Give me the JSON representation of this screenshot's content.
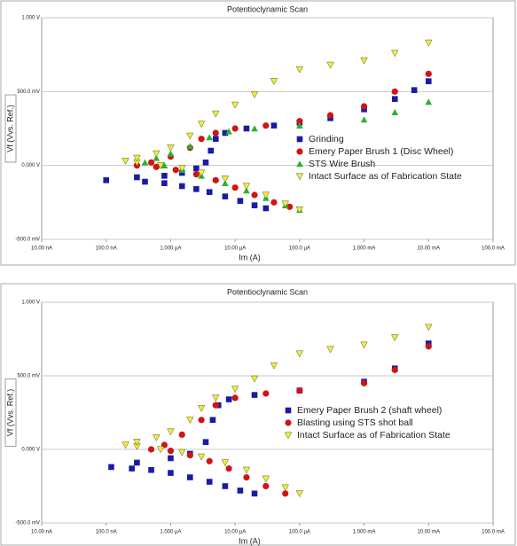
{
  "chart_data": [
    {
      "type": "scatter",
      "title": "Potentioclynamic  Scan",
      "xlabel": "Im  (A)",
      "ylabel": "Vf  (Vvs.  Ref.)",
      "xscale": "log",
      "xlim": [
        1e-08,
        0.1
      ],
      "xticks": [
        {
          "value": 1e-08,
          "label": "10.00 nA"
        },
        {
          "value": 1e-07,
          "label": "100.0 nA"
        },
        {
          "value": 1e-06,
          "label": "1.000 µA"
        },
        {
          "value": 1e-05,
          "label": "10.00 µA"
        },
        {
          "value": 0.0001,
          "label": "100.0 µA"
        },
        {
          "value": 0.001,
          "label": "1.000 mA"
        },
        {
          "value": 0.01,
          "label": "10.00 mA"
        },
        {
          "value": 0.1,
          "label": "100.0 mA"
        }
      ],
      "ylim": [
        -0.5,
        1.0
      ],
      "yticks": [
        {
          "value": -0.5,
          "label": "-500.0 mV"
        },
        {
          "value": 0,
          "label": "0.000 V"
        },
        {
          "value": 0.5,
          "label": "500.0 mV"
        },
        {
          "value": 1.0,
          "label": "1.000 V"
        }
      ],
      "grid": true,
      "legend": "right",
      "series": [
        {
          "name": "Grinding",
          "color": "#1a1aa8",
          "marker": "square",
          "x": [
            3e-05,
            2e-05,
            1.2e-05,
            7e-06,
            4e-06,
            2.5e-06,
            1.5e-06,
            8e-07,
            4e-07,
            1e-07,
            3e-07,
            8e-07,
            1.5e-06,
            2.5e-06,
            3.5e-06,
            4.2e-06,
            5e-06,
            7e-06,
            1.5e-05,
            4e-05,
            0.0001,
            0.0003,
            0.001,
            0.003,
            0.006,
            0.01
          ],
          "values": [
            -0.29,
            -0.27,
            -0.24,
            -0.21,
            -0.18,
            -0.16,
            -0.14,
            -0.12,
            -0.11,
            -0.1,
            -0.08,
            -0.07,
            -0.05,
            -0.02,
            0.02,
            0.1,
            0.18,
            0.22,
            0.25,
            0.27,
            0.29,
            0.32,
            0.38,
            0.45,
            0.51,
            0.57
          ]
        },
        {
          "name": "Emery Paper Brush 1 (Disc Wheel)",
          "color": "#d01414",
          "marker": "circle",
          "x": [
            7e-05,
            4e-05,
            2e-05,
            1e-05,
            5e-06,
            2.5e-06,
            1.2e-06,
            6e-07,
            3e-07,
            5e-07,
            1e-06,
            2e-06,
            3e-06,
            5e-06,
            1e-05,
            3e-05,
            0.0001,
            0.0003,
            0.001,
            0.003,
            0.01
          ],
          "values": [
            -0.28,
            -0.25,
            -0.2,
            -0.15,
            -0.1,
            -0.06,
            -0.03,
            -0.01,
            0.0,
            0.02,
            0.06,
            0.12,
            0.18,
            0.22,
            0.25,
            0.27,
            0.3,
            0.34,
            0.4,
            0.5,
            0.62
          ]
        },
        {
          "name": "STS Wire Brush",
          "color": "#2eb02e",
          "marker": "triangle-up",
          "x": [
            0.0001,
            6e-05,
            3e-05,
            1.5e-05,
            7e-06,
            3e-06,
            1.5e-06,
            8e-07,
            4e-07,
            6e-07,
            1e-06,
            2e-06,
            4e-06,
            8e-06,
            2e-05,
            0.0001,
            0.001,
            0.003,
            0.01
          ],
          "values": [
            -0.3,
            -0.27,
            -0.22,
            -0.17,
            -0.12,
            -0.07,
            -0.03,
            0.0,
            0.02,
            0.05,
            0.08,
            0.13,
            0.19,
            0.23,
            0.25,
            0.27,
            0.31,
            0.36,
            0.43
          ]
        },
        {
          "name": "Intact Surface as of Fabrication State",
          "color": "#f0f028",
          "marker": "triangle-down",
          "x": [
            0.0001,
            6e-05,
            3e-05,
            1.5e-05,
            7e-06,
            3e-06,
            1.5e-06,
            7e-07,
            3e-07,
            2e-07,
            3e-07,
            6e-07,
            1e-06,
            2e-06,
            3e-06,
            5e-06,
            1e-05,
            2e-05,
            4e-05,
            0.0001,
            0.0003,
            0.001,
            0.003,
            0.01
          ],
          "values": [
            -0.3,
            -0.26,
            -0.2,
            -0.14,
            -0.09,
            -0.05,
            -0.02,
            0.0,
            0.02,
            0.03,
            0.05,
            0.08,
            0.12,
            0.2,
            0.28,
            0.35,
            0.41,
            0.48,
            0.57,
            0.65,
            0.68,
            0.71,
            0.76,
            0.83
          ]
        }
      ]
    },
    {
      "type": "scatter",
      "title": "Potentioclynamic  Scan",
      "xlabel": "Im  (A)",
      "ylabel": "Vf  (Vvs.  Ref.)",
      "xscale": "log",
      "xlim": [
        1e-08,
        0.1
      ],
      "xticks": [
        {
          "value": 1e-08,
          "label": "10.00 nA"
        },
        {
          "value": 1e-07,
          "label": "100.0 nA"
        },
        {
          "value": 1e-06,
          "label": "1.000 µA"
        },
        {
          "value": 1e-05,
          "label": "10.00 µA"
        },
        {
          "value": 0.0001,
          "label": "100.0 µA"
        },
        {
          "value": 0.001,
          "label": "1.000 mA"
        },
        {
          "value": 0.01,
          "label": "10.00 mA"
        },
        {
          "value": 0.1,
          "label": "100.0 mA"
        }
      ],
      "ylim": [
        -0.5,
        1.0
      ],
      "yticks": [
        {
          "value": -0.5,
          "label": "-500.0 mV"
        },
        {
          "value": 0,
          "label": "0.000 V"
        },
        {
          "value": 0.5,
          "label": "500.0 mV"
        },
        {
          "value": 1.0,
          "label": "1.000 V"
        }
      ],
      "grid": true,
      "legend": "right",
      "series": [
        {
          "name": "Emery Paper Brush 2 (shaft wheel)",
          "color": "#1a1aa8",
          "marker": "square",
          "x": [
            2e-05,
            1.2e-05,
            7e-06,
            4e-06,
            2e-06,
            1e-06,
            5e-07,
            2.5e-07,
            1.2e-07,
            3e-07,
            1e-06,
            2e-06,
            3.5e-06,
            4.5e-06,
            5.5e-06,
            8e-06,
            2e-05,
            0.0001,
            0.001,
            0.003,
            0.01
          ],
          "values": [
            -0.3,
            -0.28,
            -0.25,
            -0.22,
            -0.19,
            -0.16,
            -0.14,
            -0.13,
            -0.12,
            -0.09,
            -0.06,
            -0.03,
            0.05,
            0.2,
            0.3,
            0.34,
            0.37,
            0.4,
            0.46,
            0.55,
            0.72
          ]
        },
        {
          "name": "Blasting using STS shot ball",
          "color": "#d01414",
          "marker": "circle",
          "x": [
            6e-05,
            3e-05,
            1.5e-05,
            8e-06,
            4e-06,
            2e-06,
            1e-06,
            5e-07,
            8e-07,
            1.5e-06,
            3e-06,
            5e-06,
            1e-05,
            3e-05,
            0.0001,
            0.001,
            0.003,
            0.01
          ],
          "values": [
            -0.3,
            -0.25,
            -0.19,
            -0.13,
            -0.08,
            -0.04,
            -0.01,
            0.0,
            0.03,
            0.1,
            0.2,
            0.3,
            0.35,
            0.38,
            0.4,
            0.45,
            0.54,
            0.7
          ]
        },
        {
          "name": "Intact Surface as of Fabrication State",
          "color": "#f0f028",
          "marker": "triangle-down",
          "x": [
            0.0001,
            6e-05,
            3e-05,
            1.5e-05,
            7e-06,
            3e-06,
            1.5e-06,
            7e-07,
            3e-07,
            2e-07,
            3e-07,
            6e-07,
            1e-06,
            2e-06,
            3e-06,
            5e-06,
            1e-05,
            2e-05,
            4e-05,
            0.0001,
            0.0003,
            0.001,
            0.003,
            0.01
          ],
          "values": [
            -0.3,
            -0.26,
            -0.2,
            -0.14,
            -0.09,
            -0.05,
            -0.02,
            0.0,
            0.02,
            0.03,
            0.05,
            0.08,
            0.12,
            0.2,
            0.28,
            0.35,
            0.41,
            0.48,
            0.57,
            0.65,
            0.68,
            0.71,
            0.76,
            0.83
          ]
        }
      ]
    }
  ]
}
